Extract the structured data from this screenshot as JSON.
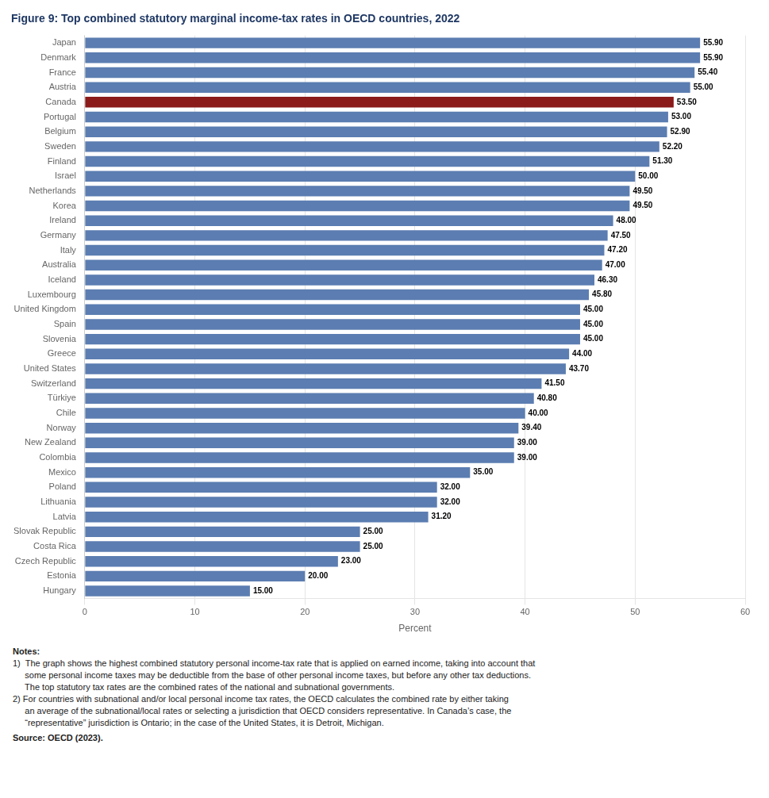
{
  "chart_data": {
    "type": "bar",
    "orientation": "horizontal",
    "title": "Figure 9: Top combined statutory marginal income-tax rates in OECD countries, 2022",
    "categories": [
      "Japan",
      "Denmark",
      "France",
      "Austria",
      "Canada",
      "Portugal",
      "Belgium",
      "Sweden",
      "Finland",
      "Israel",
      "Netherlands",
      "Korea",
      "Ireland",
      "Germany",
      "Italy",
      "Australia",
      "Iceland",
      "Luxembourg",
      "United Kingdom",
      "Spain",
      "Slovenia",
      "Greece",
      "United States",
      "Switzerland",
      "Türkiye",
      "Chile",
      "Norway",
      "New Zealand",
      "Colombia",
      "Mexico",
      "Poland",
      "Lithuania",
      "Latvia",
      "Slovak Republic",
      "Costa Rica",
      "Czech Republic",
      "Estonia",
      "Hungary"
    ],
    "values": [
      55.9,
      55.9,
      55.4,
      55.0,
      53.5,
      53.0,
      52.9,
      52.2,
      51.3,
      50.0,
      49.5,
      49.5,
      48.0,
      47.5,
      47.2,
      47.0,
      46.3,
      45.8,
      45.0,
      45.0,
      45.0,
      44.0,
      43.7,
      41.5,
      40.8,
      40.0,
      39.4,
      39.0,
      39.0,
      35.0,
      32.0,
      32.0,
      31.2,
      25.0,
      25.0,
      23.0,
      20.0,
      15.0
    ],
    "value_labels": [
      "55.90",
      "55.90",
      "55.40",
      "55.00",
      "53.50",
      "53.00",
      "52.90",
      "52.20",
      "51.30",
      "50.00",
      "49.50",
      "49.50",
      "48.00",
      "47.50",
      "47.20",
      "47.00",
      "46.30",
      "45.80",
      "45.00",
      "45.00",
      "45.00",
      "44.00",
      "43.70",
      "41.50",
      "40.80",
      "40.00",
      "39.40",
      "39.00",
      "39.00",
      "35.00",
      "32.00",
      "32.00",
      "31.20",
      "25.00",
      "25.00",
      "23.00",
      "20.00",
      "15.00"
    ],
    "colors": [
      "#5b7db1",
      "#5b7db1",
      "#5b7db1",
      "#5b7db1",
      "#8b1a1a",
      "#5b7db1",
      "#5b7db1",
      "#5b7db1",
      "#5b7db1",
      "#5b7db1",
      "#5b7db1",
      "#5b7db1",
      "#5b7db1",
      "#5b7db1",
      "#5b7db1",
      "#5b7db1",
      "#5b7db1",
      "#5b7db1",
      "#5b7db1",
      "#5b7db1",
      "#5b7db1",
      "#5b7db1",
      "#5b7db1",
      "#5b7db1",
      "#5b7db1",
      "#5b7db1",
      "#5b7db1",
      "#5b7db1",
      "#5b7db1",
      "#5b7db1",
      "#5b7db1",
      "#5b7db1",
      "#5b7db1",
      "#5b7db1",
      "#5b7db1",
      "#5b7db1",
      "#5b7db1",
      "#5b7db1"
    ],
    "data_labels": true,
    "x_label": "Percent",
    "xlim": [
      0,
      60
    ],
    "xticks": [
      0,
      10,
      20,
      30,
      40,
      50,
      60
    ],
    "grid": true,
    "annotations": [
      "Notes:",
      "1)  The graph shows the highest combined statutory personal income-tax rate that is applied on earned income, taking into account that",
      "     some personal income taxes may be deductible from the base of other personal income taxes, but before any other tax deductions.",
      "     The top statutory tax rates are the combined rates of the national and subnational governments.",
      "2) For countries with subnational and/or local personal income tax rates, the OECD calculates the combined rate by either taking",
      "     an average of the subnational/local rates or selecting a jurisdiction that OECD considers representative. In Canada’s case, the",
      "     “representative” jurisdiction is Ontario; in the case of the United States, it is Detroit, Michigan.",
      "Source: OECD (2023)."
    ]
  }
}
